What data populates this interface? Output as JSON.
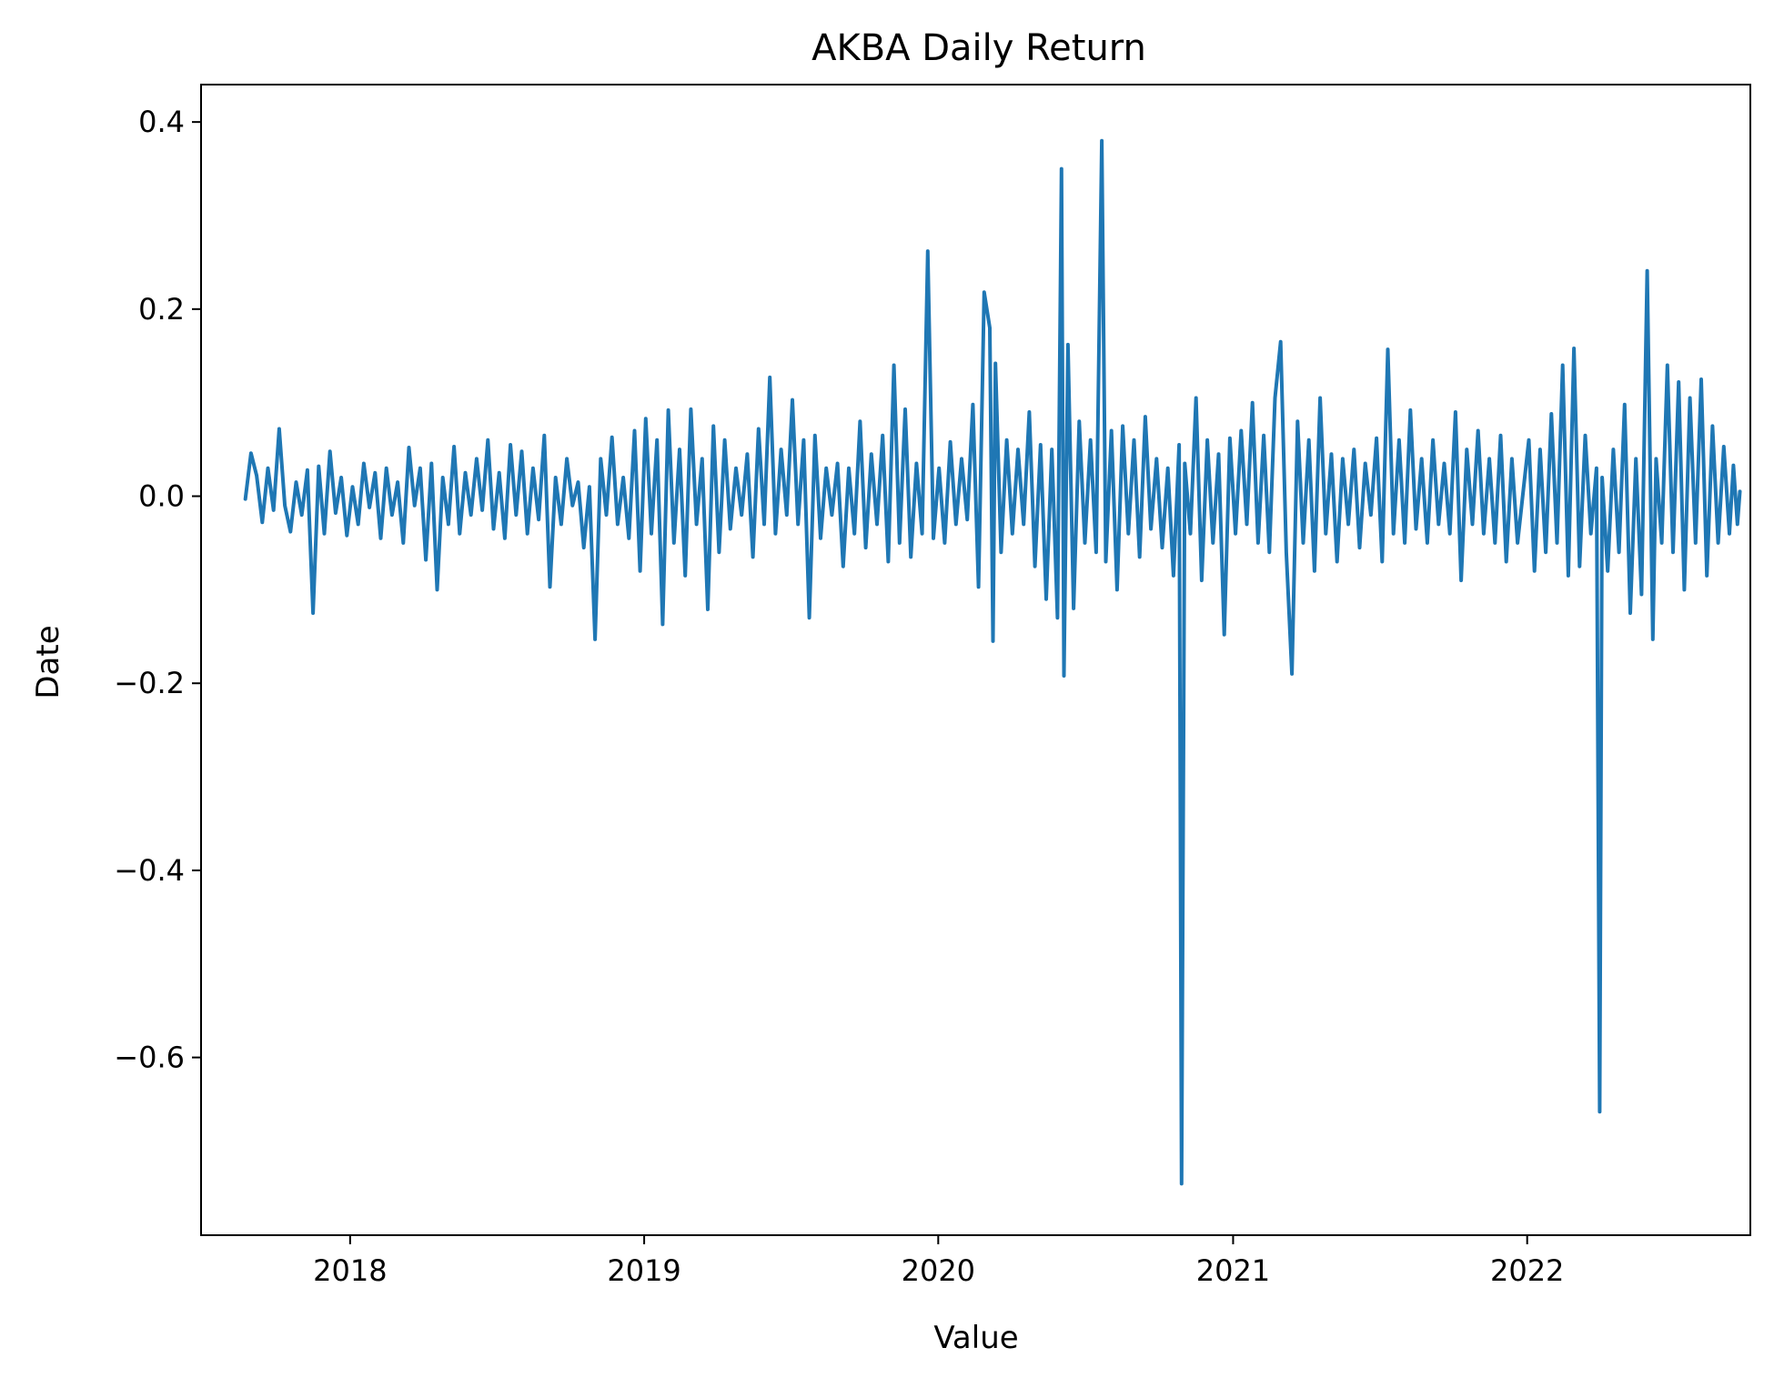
{
  "chart_data": {
    "type": "line",
    "title": "AKBA Daily Return",
    "xlabel": "Value",
    "ylabel": "Date",
    "xlim": [
      "2017-06-30",
      "2022-10-05"
    ],
    "ylim": [
      -0.79,
      0.44
    ],
    "x_ticks": [
      "2018",
      "2019",
      "2020",
      "2021",
      "2022"
    ],
    "y_ticks": [
      0.4,
      0.2,
      0.0,
      -0.2,
      -0.4,
      -0.6
    ],
    "y_tick_labels": [
      "0.4",
      "0.2",
      "0.0",
      "−0.2",
      "−0.4",
      "−0.6"
    ],
    "grid": false,
    "legend": "none",
    "series": [
      {
        "color": "#1f77b4",
        "points": [
          [
            "2017-08-24",
            -0.003
          ],
          [
            "2017-08-31",
            0.046
          ],
          [
            "2017-09-07",
            0.022
          ],
          [
            "2017-09-14",
            -0.028
          ],
          [
            "2017-09-21",
            0.03
          ],
          [
            "2017-09-28",
            -0.015
          ],
          [
            "2017-10-05",
            0.072
          ],
          [
            "2017-10-12",
            -0.01
          ],
          [
            "2017-10-19",
            -0.038
          ],
          [
            "2017-10-26",
            0.015
          ],
          [
            "2017-11-02",
            -0.02
          ],
          [
            "2017-11-09",
            0.028
          ],
          [
            "2017-11-16",
            -0.125
          ],
          [
            "2017-11-23",
            0.032
          ],
          [
            "2017-11-30",
            -0.04
          ],
          [
            "2017-12-07",
            0.048
          ],
          [
            "2017-12-14",
            -0.018
          ],
          [
            "2017-12-21",
            0.02
          ],
          [
            "2017-12-28",
            -0.042
          ],
          [
            "2018-01-04",
            0.01
          ],
          [
            "2018-01-11",
            -0.03
          ],
          [
            "2018-01-18",
            0.035
          ],
          [
            "2018-01-25",
            -0.012
          ],
          [
            "2018-02-01",
            0.025
          ],
          [
            "2018-02-08",
            -0.045
          ],
          [
            "2018-02-15",
            0.03
          ],
          [
            "2018-02-22",
            -0.02
          ],
          [
            "2018-03-01",
            0.015
          ],
          [
            "2018-03-08",
            -0.05
          ],
          [
            "2018-03-15",
            0.052
          ],
          [
            "2018-03-22",
            -0.01
          ],
          [
            "2018-03-29",
            0.03
          ],
          [
            "2018-04-05",
            -0.068
          ],
          [
            "2018-04-12",
            0.035
          ],
          [
            "2018-04-19",
            -0.1
          ],
          [
            "2018-04-26",
            0.02
          ],
          [
            "2018-05-03",
            -0.03
          ],
          [
            "2018-05-10",
            0.053
          ],
          [
            "2018-05-17",
            -0.04
          ],
          [
            "2018-05-24",
            0.025
          ],
          [
            "2018-05-31",
            -0.02
          ],
          [
            "2018-06-07",
            0.04
          ],
          [
            "2018-06-14",
            -0.015
          ],
          [
            "2018-06-21",
            0.06
          ],
          [
            "2018-06-28",
            -0.035
          ],
          [
            "2018-07-05",
            0.025
          ],
          [
            "2018-07-12",
            -0.045
          ],
          [
            "2018-07-19",
            0.055
          ],
          [
            "2018-07-26",
            -0.02
          ],
          [
            "2018-08-02",
            0.048
          ],
          [
            "2018-08-09",
            -0.04
          ],
          [
            "2018-08-16",
            0.03
          ],
          [
            "2018-08-23",
            -0.025
          ],
          [
            "2018-08-30",
            0.065
          ],
          [
            "2018-09-06",
            -0.097
          ],
          [
            "2018-09-13",
            0.02
          ],
          [
            "2018-09-20",
            -0.03
          ],
          [
            "2018-09-27",
            0.04
          ],
          [
            "2018-10-04",
            -0.01
          ],
          [
            "2018-10-11",
            0.015
          ],
          [
            "2018-10-18",
            -0.055
          ],
          [
            "2018-10-25",
            0.01
          ],
          [
            "2018-11-01",
            -0.153
          ],
          [
            "2018-11-08",
            0.04
          ],
          [
            "2018-11-15",
            -0.02
          ],
          [
            "2018-11-22",
            0.063
          ],
          [
            "2018-11-29",
            -0.03
          ],
          [
            "2018-12-06",
            0.02
          ],
          [
            "2018-12-13",
            -0.045
          ],
          [
            "2018-12-20",
            0.07
          ],
          [
            "2018-12-27",
            -0.08
          ],
          [
            "2019-01-03",
            0.083
          ],
          [
            "2019-01-10",
            -0.04
          ],
          [
            "2019-01-17",
            0.06
          ],
          [
            "2019-01-24",
            -0.137
          ],
          [
            "2019-01-31",
            0.092
          ],
          [
            "2019-02-07",
            -0.05
          ],
          [
            "2019-02-14",
            0.05
          ],
          [
            "2019-02-21",
            -0.085
          ],
          [
            "2019-02-28",
            0.093
          ],
          [
            "2019-03-07",
            -0.03
          ],
          [
            "2019-03-14",
            0.04
          ],
          [
            "2019-03-21",
            -0.121
          ],
          [
            "2019-03-28",
            0.075
          ],
          [
            "2019-04-04",
            -0.06
          ],
          [
            "2019-04-11",
            0.06
          ],
          [
            "2019-04-18",
            -0.035
          ],
          [
            "2019-04-25",
            0.03
          ],
          [
            "2019-05-02",
            -0.02
          ],
          [
            "2019-05-09",
            0.045
          ],
          [
            "2019-05-16",
            -0.065
          ],
          [
            "2019-05-23",
            0.072
          ],
          [
            "2019-05-30",
            -0.03
          ],
          [
            "2019-06-06",
            0.127
          ],
          [
            "2019-06-13",
            -0.04
          ],
          [
            "2019-06-20",
            0.05
          ],
          [
            "2019-06-27",
            -0.02
          ],
          [
            "2019-07-04",
            0.103
          ],
          [
            "2019-07-11",
            -0.03
          ],
          [
            "2019-07-18",
            0.06
          ],
          [
            "2019-07-25",
            -0.13
          ],
          [
            "2019-08-01",
            0.065
          ],
          [
            "2019-08-08",
            -0.045
          ],
          [
            "2019-08-15",
            0.03
          ],
          [
            "2019-08-22",
            -0.02
          ],
          [
            "2019-08-29",
            0.035
          ],
          [
            "2019-09-05",
            -0.075
          ],
          [
            "2019-09-12",
            0.03
          ],
          [
            "2019-09-19",
            -0.04
          ],
          [
            "2019-09-26",
            0.08
          ],
          [
            "2019-10-03",
            -0.055
          ],
          [
            "2019-10-10",
            0.045
          ],
          [
            "2019-10-17",
            -0.03
          ],
          [
            "2019-10-24",
            0.065
          ],
          [
            "2019-10-31",
            -0.07
          ],
          [
            "2019-11-07",
            0.14
          ],
          [
            "2019-11-14",
            -0.05
          ],
          [
            "2019-11-21",
            0.093
          ],
          [
            "2019-11-28",
            -0.065
          ],
          [
            "2019-12-05",
            0.035
          ],
          [
            "2019-12-12",
            -0.04
          ],
          [
            "2019-12-19",
            0.262
          ],
          [
            "2019-12-26",
            -0.045
          ],
          [
            "2020-01-02",
            0.03
          ],
          [
            "2020-01-09",
            -0.05
          ],
          [
            "2020-01-16",
            0.058
          ],
          [
            "2020-01-23",
            -0.03
          ],
          [
            "2020-01-30",
            0.04
          ],
          [
            "2020-02-06",
            -0.025
          ],
          [
            "2020-02-13",
            0.098
          ],
          [
            "2020-02-20",
            -0.097
          ],
          [
            "2020-02-27",
            0.218
          ],
          [
            "2020-03-05",
            0.18
          ],
          [
            "2020-03-09",
            -0.155
          ],
          [
            "2020-03-12",
            0.142
          ],
          [
            "2020-03-19",
            -0.06
          ],
          [
            "2020-03-26",
            0.06
          ],
          [
            "2020-04-02",
            -0.04
          ],
          [
            "2020-04-09",
            0.05
          ],
          [
            "2020-04-16",
            -0.03
          ],
          [
            "2020-04-23",
            0.09
          ],
          [
            "2020-04-30",
            -0.075
          ],
          [
            "2020-05-07",
            0.055
          ],
          [
            "2020-05-14",
            -0.11
          ],
          [
            "2020-05-21",
            0.05
          ],
          [
            "2020-05-28",
            -0.13
          ],
          [
            "2020-06-02",
            0.35
          ],
          [
            "2020-06-05",
            -0.192
          ],
          [
            "2020-06-10",
            0.162
          ],
          [
            "2020-06-17",
            -0.12
          ],
          [
            "2020-06-24",
            0.08
          ],
          [
            "2020-07-01",
            -0.05
          ],
          [
            "2020-07-08",
            0.06
          ],
          [
            "2020-07-15",
            -0.06
          ],
          [
            "2020-07-22",
            0.38
          ],
          [
            "2020-07-27",
            -0.07
          ],
          [
            "2020-08-03",
            0.07
          ],
          [
            "2020-08-10",
            -0.1
          ],
          [
            "2020-08-17",
            0.075
          ],
          [
            "2020-08-24",
            -0.04
          ],
          [
            "2020-08-31",
            0.06
          ],
          [
            "2020-09-07",
            -0.065
          ],
          [
            "2020-09-14",
            0.085
          ],
          [
            "2020-09-21",
            -0.035
          ],
          [
            "2020-09-28",
            0.04
          ],
          [
            "2020-10-05",
            -0.055
          ],
          [
            "2020-10-12",
            0.03
          ],
          [
            "2020-10-19",
            -0.085
          ],
          [
            "2020-10-26",
            0.055
          ],
          [
            "2020-10-29",
            -0.735
          ],
          [
            "2020-11-02",
            0.035
          ],
          [
            "2020-11-09",
            -0.04
          ],
          [
            "2020-11-16",
            0.105
          ],
          [
            "2020-11-23",
            -0.09
          ],
          [
            "2020-11-30",
            0.06
          ],
          [
            "2020-12-07",
            -0.05
          ],
          [
            "2020-12-14",
            0.045
          ],
          [
            "2020-12-21",
            -0.148
          ],
          [
            "2020-12-28",
            0.062
          ],
          [
            "2021-01-04",
            -0.04
          ],
          [
            "2021-01-11",
            0.07
          ],
          [
            "2021-01-18",
            -0.03
          ],
          [
            "2021-01-25",
            0.1
          ],
          [
            "2021-02-01",
            -0.05
          ],
          [
            "2021-02-08",
            0.065
          ],
          [
            "2021-02-15",
            -0.06
          ],
          [
            "2021-02-22",
            0.105
          ],
          [
            "2021-03-01",
            0.165
          ],
          [
            "2021-03-08",
            -0.06
          ],
          [
            "2021-03-15",
            -0.19
          ],
          [
            "2021-03-22",
            0.08
          ],
          [
            "2021-03-29",
            -0.05
          ],
          [
            "2021-04-05",
            0.06
          ],
          [
            "2021-04-12",
            -0.08
          ],
          [
            "2021-04-19",
            0.105
          ],
          [
            "2021-04-26",
            -0.04
          ],
          [
            "2021-05-03",
            0.045
          ],
          [
            "2021-05-10",
            -0.07
          ],
          [
            "2021-05-17",
            0.04
          ],
          [
            "2021-05-24",
            -0.03
          ],
          [
            "2021-05-31",
            0.05
          ],
          [
            "2021-06-07",
            -0.055
          ],
          [
            "2021-06-14",
            0.035
          ],
          [
            "2021-06-21",
            -0.02
          ],
          [
            "2021-06-28",
            0.062
          ],
          [
            "2021-07-05",
            -0.07
          ],
          [
            "2021-07-12",
            0.157
          ],
          [
            "2021-07-19",
            -0.04
          ],
          [
            "2021-07-26",
            0.06
          ],
          [
            "2021-08-02",
            -0.05
          ],
          [
            "2021-08-09",
            0.092
          ],
          [
            "2021-08-16",
            -0.035
          ],
          [
            "2021-08-23",
            0.04
          ],
          [
            "2021-08-30",
            -0.05
          ],
          [
            "2021-09-06",
            0.06
          ],
          [
            "2021-09-13",
            -0.03
          ],
          [
            "2021-09-20",
            0.035
          ],
          [
            "2021-09-27",
            -0.04
          ],
          [
            "2021-10-04",
            0.09
          ],
          [
            "2021-10-11",
            -0.09
          ],
          [
            "2021-10-18",
            0.05
          ],
          [
            "2021-10-25",
            -0.03
          ],
          [
            "2021-11-01",
            0.07
          ],
          [
            "2021-11-08",
            -0.04
          ],
          [
            "2021-11-15",
            0.04
          ],
          [
            "2021-11-22",
            -0.05
          ],
          [
            "2021-11-29",
            0.065
          ],
          [
            "2021-12-06",
            -0.07
          ],
          [
            "2021-12-13",
            0.04
          ],
          [
            "2021-12-20",
            -0.05
          ],
          [
            "2022-01-03",
            0.06
          ],
          [
            "2022-01-10",
            -0.08
          ],
          [
            "2022-01-17",
            0.05
          ],
          [
            "2022-01-24",
            -0.06
          ],
          [
            "2022-01-31",
            0.088
          ],
          [
            "2022-02-07",
            -0.05
          ],
          [
            "2022-02-14",
            0.14
          ],
          [
            "2022-02-21",
            -0.085
          ],
          [
            "2022-02-28",
            0.158
          ],
          [
            "2022-03-07",
            -0.075
          ],
          [
            "2022-03-14",
            0.065
          ],
          [
            "2022-03-21",
            -0.04
          ],
          [
            "2022-03-28",
            0.03
          ],
          [
            "2022-04-01",
            -0.658
          ],
          [
            "2022-04-04",
            0.02
          ],
          [
            "2022-04-11",
            -0.08
          ],
          [
            "2022-04-18",
            0.05
          ],
          [
            "2022-04-25",
            -0.06
          ],
          [
            "2022-05-02",
            0.098
          ],
          [
            "2022-05-09",
            -0.125
          ],
          [
            "2022-05-16",
            0.04
          ],
          [
            "2022-05-23",
            -0.105
          ],
          [
            "2022-05-30",
            0.241
          ],
          [
            "2022-06-06",
            -0.153
          ],
          [
            "2022-06-10",
            0.04
          ],
          [
            "2022-06-17",
            -0.05
          ],
          [
            "2022-06-24",
            0.14
          ],
          [
            "2022-07-01",
            -0.06
          ],
          [
            "2022-07-08",
            0.122
          ],
          [
            "2022-07-15",
            -0.1
          ],
          [
            "2022-07-22",
            0.105
          ],
          [
            "2022-07-29",
            -0.05
          ],
          [
            "2022-08-05",
            0.125
          ],
          [
            "2022-08-12",
            -0.085
          ],
          [
            "2022-08-19",
            0.075
          ],
          [
            "2022-08-26",
            -0.05
          ],
          [
            "2022-09-02",
            0.053
          ],
          [
            "2022-09-09",
            -0.04
          ],
          [
            "2022-09-14",
            0.033
          ],
          [
            "2022-09-19",
            -0.03
          ],
          [
            "2022-09-22",
            0.005
          ]
        ]
      }
    ]
  }
}
